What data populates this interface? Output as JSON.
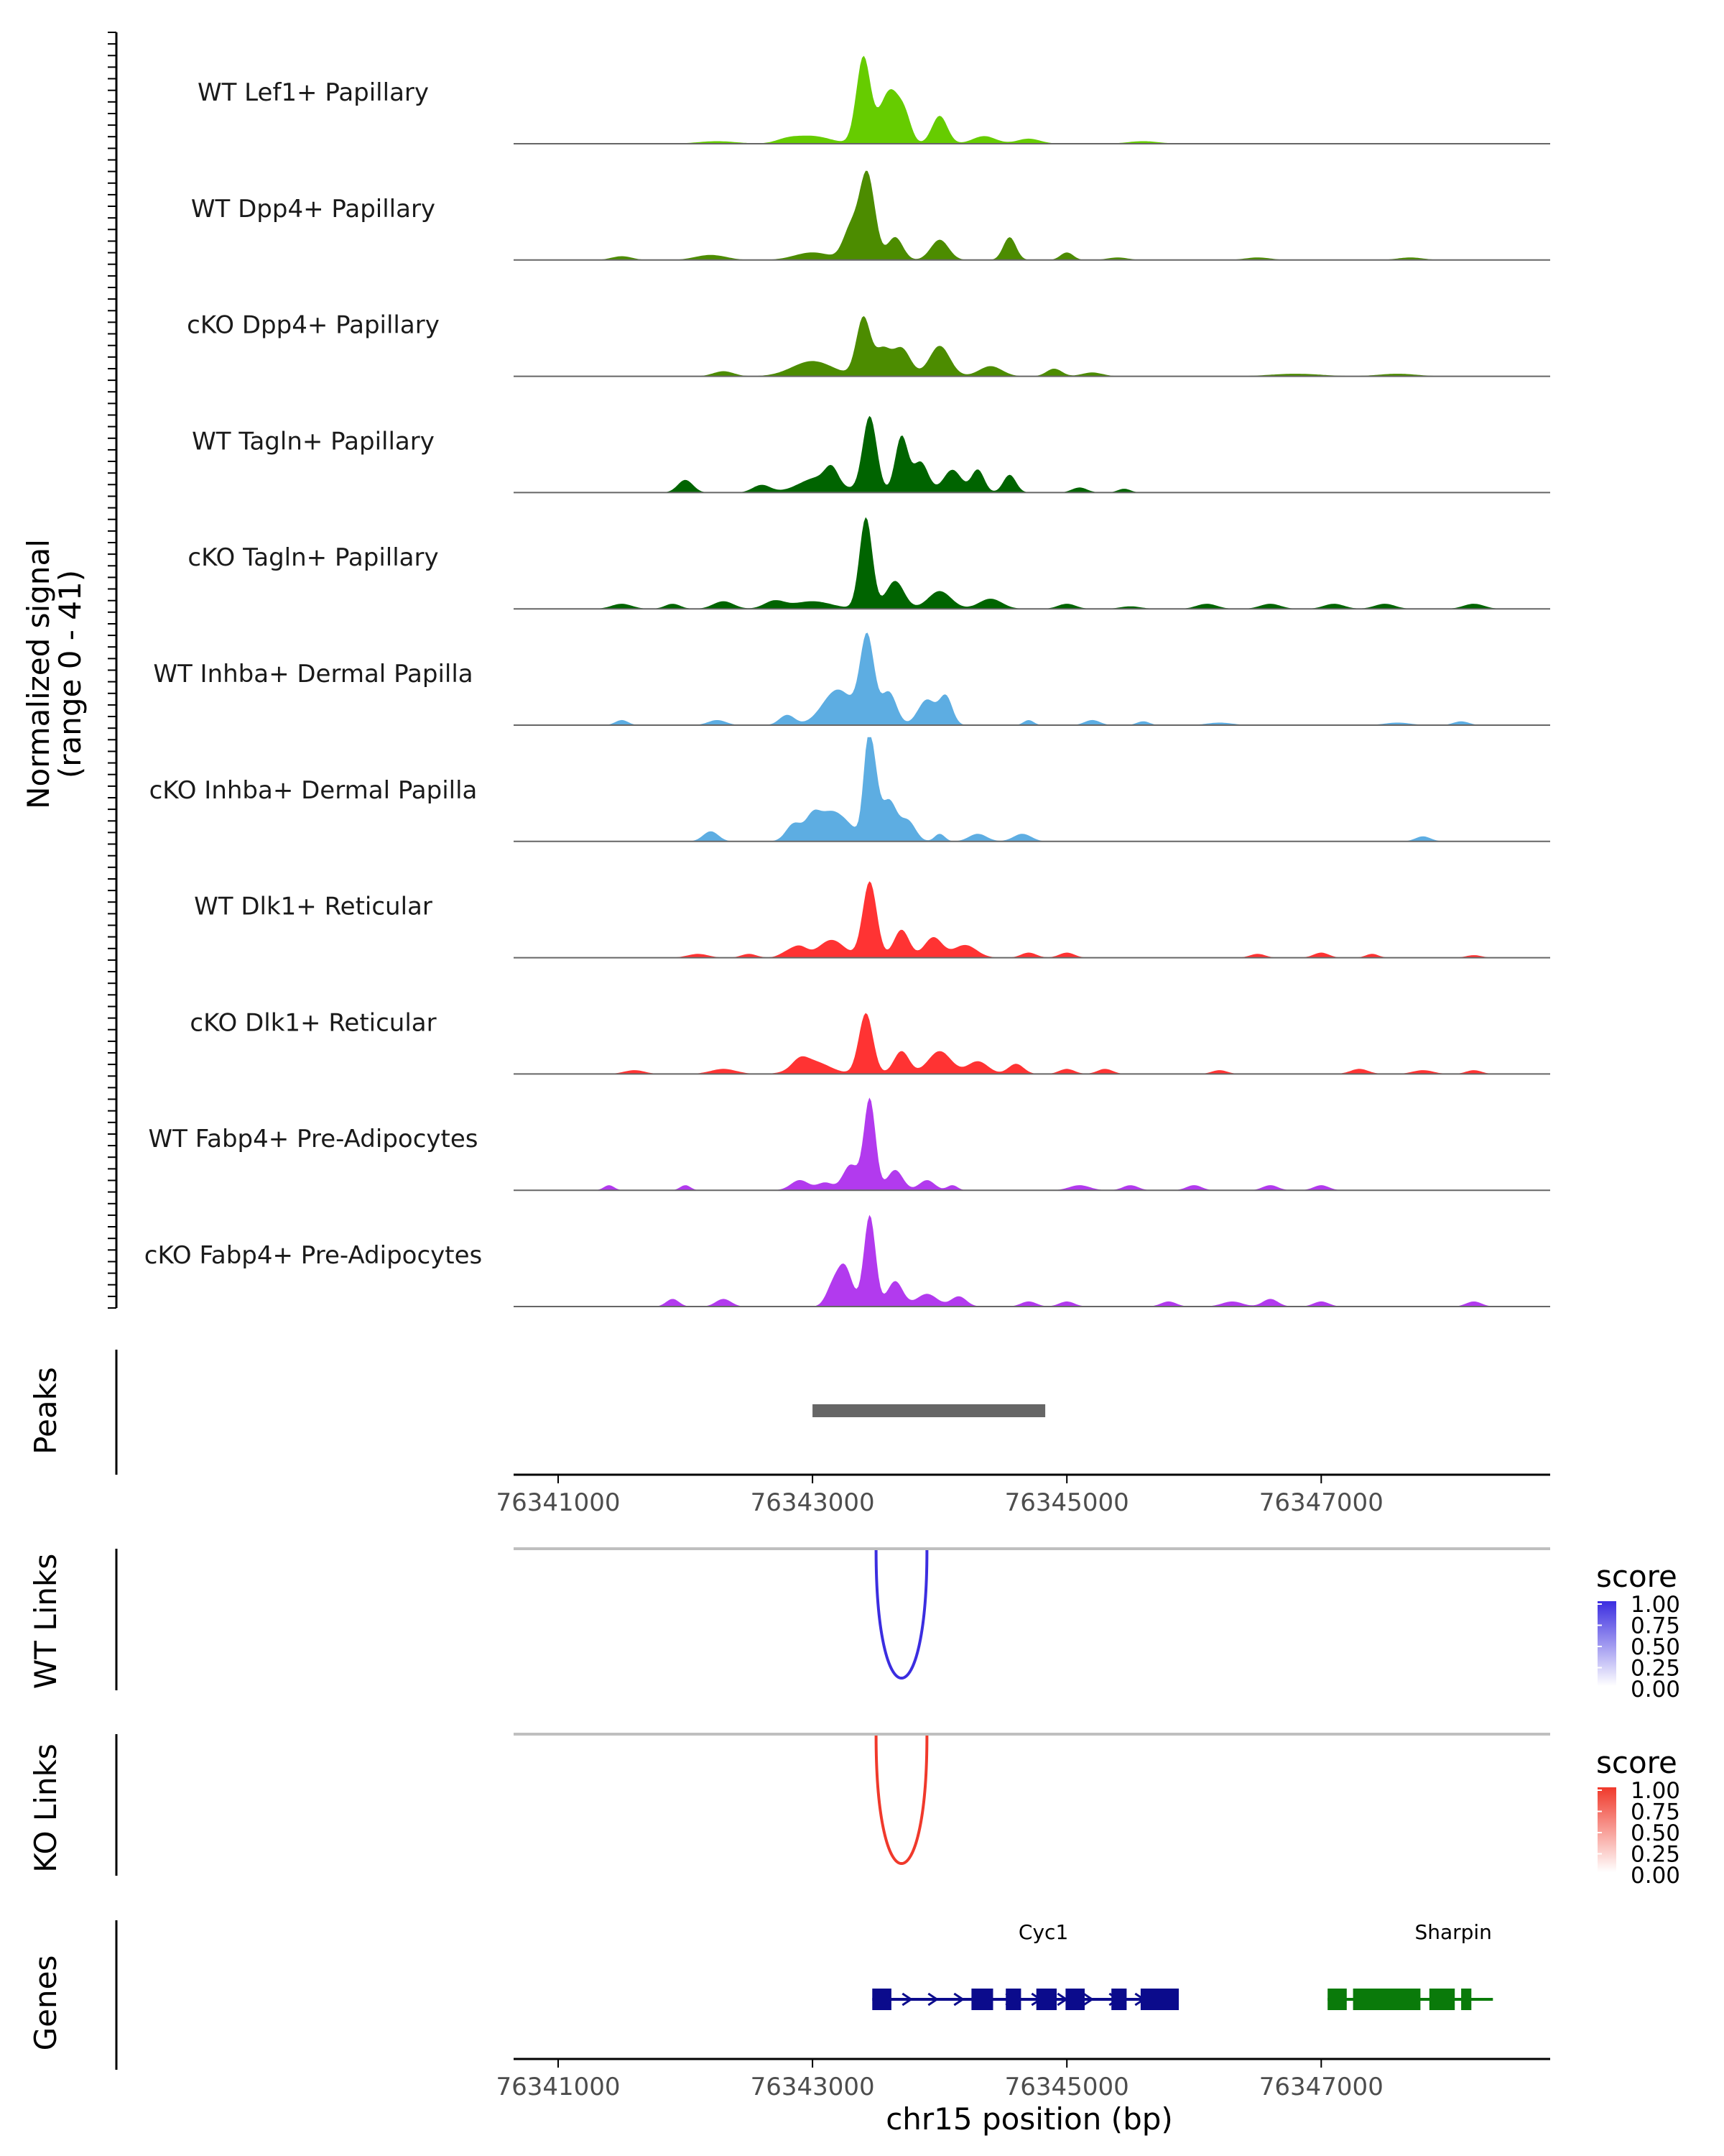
{
  "chart_data": {
    "type": "area",
    "title": "",
    "region": {
      "chrom": "chr15",
      "start": 76340650,
      "end": 76348800
    },
    "xlabel": "chr15 position (bp)",
    "x_ticks": [
      76341000,
      76343000,
      76345000,
      76347000
    ],
    "x_tick_labels": [
      "76341000",
      "76343000",
      "76345000",
      "76347000"
    ],
    "coverage": {
      "ylabel_line1": "Normalized signal",
      "ylabel_line2": "(range 0 - 41)",
      "ylim": [
        0,
        41
      ],
      "tracks": [
        {
          "name": "WT Lef1+ Papillary",
          "color": "#66CC00",
          "peaks": [
            [
              76343000,
              3,
              140
            ],
            [
              76343400,
              34,
              55
            ],
            [
              76343580,
              15,
              70
            ],
            [
              76343730,
              9,
              50
            ],
            [
              76344000,
              11,
              60
            ],
            [
              76343650,
              9,
              60
            ],
            [
              76344350,
              3,
              90
            ],
            [
              76344700,
              2,
              90
            ],
            [
              76342250,
              1,
              150
            ],
            [
              76342800,
              1.5,
              90
            ],
            [
              76345600,
              1,
              120
            ]
          ]
        },
        {
          "name": "WT Dpp4+ Papillary",
          "color": "#4C8C00",
          "peaks": [
            [
              76343000,
              3,
              140
            ],
            [
              76343430,
              34,
              60
            ],
            [
              76343650,
              9,
              60
            ],
            [
              76344000,
              8,
              70
            ],
            [
              76343300,
              12,
              60
            ],
            [
              76344550,
              9,
              50
            ],
            [
              76342200,
              2,
              120
            ],
            [
              76341500,
              1.5,
              80
            ],
            [
              76345000,
              3,
              50
            ],
            [
              76345400,
              1,
              80
            ],
            [
              76346500,
              1,
              100
            ],
            [
              76347700,
              1,
              100
            ]
          ]
        },
        {
          "name": "cKO Dpp4+ Papillary",
          "color": "#4C8C00",
          "peaks": [
            [
              76343000,
              6,
              160
            ],
            [
              76343400,
              23,
              55
            ],
            [
              76343700,
              11,
              70
            ],
            [
              76344000,
              12,
              80
            ],
            [
              76343550,
              10,
              60
            ],
            [
              76344400,
              4,
              90
            ],
            [
              76342300,
              2,
              80
            ],
            [
              76344900,
              3,
              60
            ],
            [
              76345200,
              1.5,
              80
            ],
            [
              76346800,
              1,
              200
            ],
            [
              76347600,
              1,
              150
            ]
          ]
        },
        {
          "name": "WT Tagln+ Papillary",
          "color": "#006400",
          "peaks": [
            [
              76343050,
              6,
              150
            ],
            [
              76343450,
              30,
              55
            ],
            [
              76343700,
              22,
              50
            ],
            [
              76343850,
              12,
              60
            ],
            [
              76344100,
              9,
              70
            ],
            [
              76344300,
              9,
              50
            ],
            [
              76344550,
              7,
              50
            ],
            [
              76343150,
              6,
              50
            ],
            [
              76342000,
              5,
              60
            ],
            [
              76342600,
              3,
              70
            ],
            [
              76345100,
              2,
              60
            ],
            [
              76345450,
              1.5,
              50
            ]
          ]
        },
        {
          "name": "cKO Tagln+ Papillary",
          "color": "#006400",
          "peaks": [
            [
              76343000,
              3,
              150
            ],
            [
              76343420,
              36,
              50
            ],
            [
              76343650,
              11,
              70
            ],
            [
              76344000,
              7,
              90
            ],
            [
              76344400,
              4,
              90
            ],
            [
              76342300,
              3,
              80
            ],
            [
              76342700,
              3,
              80
            ],
            [
              76341500,
              2,
              80
            ],
            [
              76341900,
              2,
              60
            ],
            [
              76345000,
              2,
              70
            ],
            [
              76346100,
              2,
              80
            ],
            [
              76346600,
              2,
              80
            ],
            [
              76347100,
              2,
              80
            ],
            [
              76347500,
              2,
              80
            ],
            [
              76348200,
              2,
              80
            ],
            [
              76345500,
              1,
              80
            ]
          ]
        },
        {
          "name": "WT Inhba+ Dermal Papilla",
          "color": "#5DADE2",
          "peaks": [
            [
              76343200,
              14,
              120
            ],
            [
              76343430,
              34,
              55
            ],
            [
              76343600,
              13,
              60
            ],
            [
              76343900,
              10,
              70
            ],
            [
              76344050,
              11,
              50
            ],
            [
              76342800,
              4,
              60
            ],
            [
              76342250,
              2,
              70
            ],
            [
              76341500,
              2,
              50
            ],
            [
              76344700,
              2,
              40
            ],
            [
              76345200,
              2,
              60
            ],
            [
              76345600,
              1.5,
              50
            ],
            [
              76346200,
              1,
              100
            ],
            [
              76347600,
              1,
              100
            ],
            [
              76348100,
              1.5,
              60
            ]
          ]
        },
        {
          "name": "cKO Inhba+ Dermal Papilla",
          "color": "#5DADE2",
          "peaks": [
            [
              76343150,
              12,
              140
            ],
            [
              76343430,
              28,
              35
            ],
            [
              76343480,
              24,
              40
            ],
            [
              76343600,
              16,
              60
            ],
            [
              76343750,
              8,
              60
            ],
            [
              76342850,
              6,
              60
            ],
            [
              76343000,
              5,
              50
            ],
            [
              76342200,
              4,
              60
            ],
            [
              76344000,
              3,
              40
            ],
            [
              76344300,
              3,
              70
            ],
            [
              76344650,
              3,
              70
            ],
            [
              76347800,
              2,
              60
            ]
          ]
        },
        {
          "name": "WT Dlk1+ Reticular",
          "color": "#FF3333",
          "peaks": [
            [
              76343150,
              7,
              100
            ],
            [
              76343450,
              30,
              55
            ],
            [
              76343700,
              11,
              60
            ],
            [
              76343950,
              8,
              70
            ],
            [
              76344200,
              5,
              90
            ],
            [
              76342900,
              4,
              60
            ],
            [
              76342800,
              2,
              60
            ],
            [
              76342100,
              1.5,
              80
            ],
            [
              76342500,
              1.5,
              60
            ],
            [
              76344700,
              2,
              60
            ],
            [
              76345000,
              2,
              60
            ],
            [
              76346500,
              1.5,
              60
            ],
            [
              76347000,
              2,
              60
            ],
            [
              76347400,
              1.5,
              50
            ],
            [
              76348200,
              1,
              60
            ]
          ]
        },
        {
          "name": "cKO Dlk1+ Reticular",
          "color": "#FF3333",
          "peaks": [
            [
              76343000,
              5,
              130
            ],
            [
              76343420,
              24,
              55
            ],
            [
              76343700,
              9,
              60
            ],
            [
              76344000,
              9,
              90
            ],
            [
              76344300,
              5,
              80
            ],
            [
              76344600,
              4,
              60
            ],
            [
              76342300,
              2,
              100
            ],
            [
              76341600,
              1.5,
              80
            ],
            [
              76342900,
              3,
              60
            ],
            [
              76345000,
              2,
              60
            ],
            [
              76345300,
              2,
              60
            ],
            [
              76346200,
              1.5,
              60
            ],
            [
              76347300,
              2,
              70
            ],
            [
              76347800,
              1.5,
              80
            ],
            [
              76348200,
              1.5,
              60
            ]
          ]
        },
        {
          "name": "WT Fabp4+ Pre-Adipocytes",
          "color": "#B23AEE",
          "peaks": [
            [
              76343450,
              36,
              45
            ],
            [
              76343300,
              10,
              60
            ],
            [
              76343650,
              8,
              60
            ],
            [
              76343900,
              4,
              60
            ],
            [
              76342900,
              4,
              70
            ],
            [
              76343100,
              3,
              60
            ],
            [
              76341400,
              2,
              40
            ],
            [
              76342000,
              2,
              40
            ],
            [
              76344100,
              2,
              40
            ],
            [
              76345100,
              2,
              80
            ],
            [
              76345500,
              2,
              60
            ],
            [
              76346000,
              2,
              60
            ],
            [
              76346600,
              2,
              60
            ],
            [
              76347000,
              2,
              60
            ]
          ]
        },
        {
          "name": "cKO Fabp4+ Pre-Adipocytes",
          "color": "#B23AEE",
          "peaks": [
            [
              76343450,
              36,
              45
            ],
            [
              76343250,
              16,
              60
            ],
            [
              76343150,
              6,
              50
            ],
            [
              76343650,
              10,
              60
            ],
            [
              76343900,
              5,
              80
            ],
            [
              76344150,
              4,
              60
            ],
            [
              76341900,
              3,
              50
            ],
            [
              76342300,
              3,
              60
            ],
            [
              76344700,
              2,
              60
            ],
            [
              76345000,
              2,
              60
            ],
            [
              76345800,
              2,
              60
            ],
            [
              76346300,
              2,
              80
            ],
            [
              76346600,
              3,
              60
            ],
            [
              76347000,
              2,
              60
            ],
            [
              76348200,
              2,
              60
            ]
          ]
        }
      ]
    },
    "peaks_track": {
      "label": "Peaks",
      "regions": [
        [
          76343000,
          76344830
        ]
      ]
    },
    "links": [
      {
        "label": "WT Links",
        "color": "#3B2DE0",
        "start": 76343500,
        "end": 76343900,
        "score": 1.0,
        "legend_title": "score",
        "legend_ticks": [
          "1.00",
          "0.75",
          "0.50",
          "0.25",
          "0.00"
        ]
      },
      {
        "label": "KO Links",
        "color": "#F0392B",
        "start": 76343500,
        "end": 76343900,
        "score": 1.0,
        "legend_title": "score",
        "legend_ticks": [
          "1.00",
          "0.75",
          "0.50",
          "0.25",
          "0.00"
        ]
      }
    ],
    "genes": {
      "label": "Genes",
      "items": [
        {
          "name": "Cyc1",
          "color": "#0B0B8C",
          "strand": "+",
          "start": 76343470,
          "end": 76345880,
          "exons": [
            [
              76343470,
              76343620
            ],
            [
              76344250,
              76344420
            ],
            [
              76344520,
              76344640
            ],
            [
              76344760,
              76344920
            ],
            [
              76344990,
              76345140
            ],
            [
              76345350,
              76345470
            ],
            [
              76345580,
              76345880
            ]
          ]
        },
        {
          "name": "Sharpin",
          "color": "#0A7A0A",
          "strand": "-",
          "start": 76347050,
          "end": 76348350,
          "exons": [
            [
              76347050,
              76347200
            ],
            [
              76347250,
              76347780
            ],
            [
              76347850,
              76348050
            ],
            [
              76348100,
              76348180
            ]
          ]
        }
      ]
    }
  }
}
